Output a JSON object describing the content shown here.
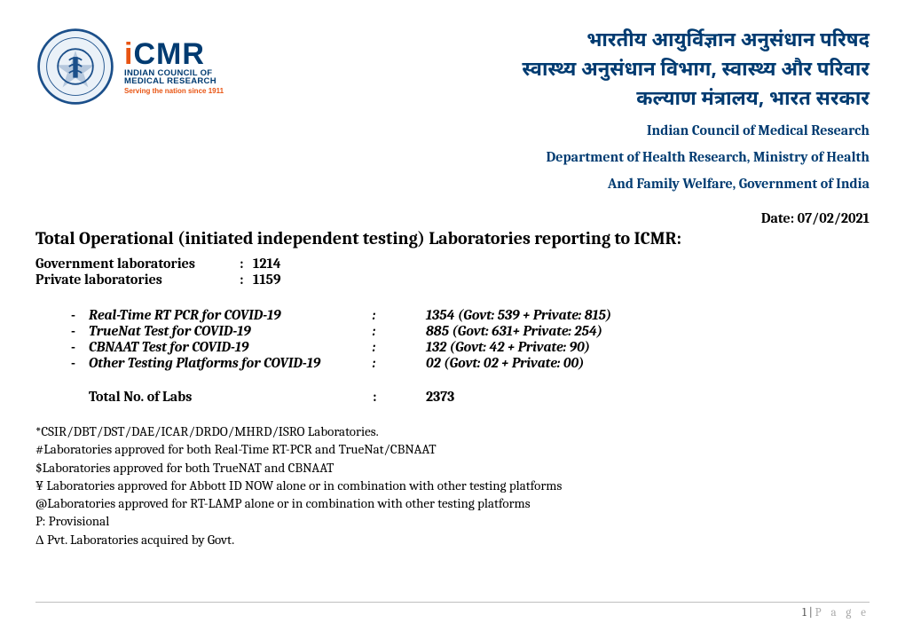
{
  "header": {
    "logo": {
      "icmr_upper": "ICMR",
      "icmr_sub1": "INDIAN COUNCIL OF",
      "icmr_sub2": "MEDICAL RESEARCH",
      "tagline": "Serving the nation since 1911",
      "emblem_stroke": "#1b4f8a",
      "emblem_fill": "#eaf1f8",
      "dot_color": "#e85412",
      "brand_color": "#003b71"
    },
    "hindi_line1": "भारतीय आयुर्विज्ञान अनुसंधान परिषद",
    "hindi_line2": "स्वास्थ्य अनुसंधान विभाग, स्वास्थ्य और परिवार",
    "hindi_line3": "कल्याण मंत्रालय, भारत सरकार",
    "eng_line1": "Indian Council of Medical Research",
    "eng_line2": "Department of Health Research, Ministry of Health",
    "eng_line3": "And Family Welfare, Government of India"
  },
  "date_label": "Date: 07/02/2021",
  "heading": "Total Operational (initiated independent testing) Laboratories reporting to ICMR:",
  "counts": {
    "gov_label": "Government laboratories",
    "gov_value": "1214",
    "priv_label": "Private laboratories",
    "priv_value": "1159"
  },
  "tests": [
    {
      "name": "Real-Time RT PCR for COVID-19",
      "value": "1354 (Govt: 539 + Private: 815)"
    },
    {
      "name": "TrueNat Test for COVID-19",
      "value": "885   (Govt: 631+ Private: 254)"
    },
    {
      "name": "CBNAAT Test for COVID-19",
      "value": "132   (Govt: 42 + Private: 90)"
    },
    {
      "name": "Other Testing Platforms for COVID-19",
      "value": "02     (Govt: 02 + Private: 00)"
    }
  ],
  "total": {
    "label": "Total No. of Labs",
    "value": "2373"
  },
  "legend": [
    "*CSIR/DBT/DST/DAE/ICAR/DRDO/MHRD/ISRO Laboratories.",
    "#Laboratories approved for both Real-Time RT-PCR and TrueNat/CBNAAT",
    "$Laboratories approved for both TrueNAT and CBNAAT",
    "¥ Laboratories approved for Abbott ID NOW alone or in combination with other testing platforms",
    "@Laboratories approved for RT-LAMP alone or in combination with other testing platforms",
    "P: Provisional",
    "Δ Pvt. Laboratories acquired by Govt."
  ],
  "footer": {
    "page_num": "1",
    "page_word": "P a g e"
  }
}
